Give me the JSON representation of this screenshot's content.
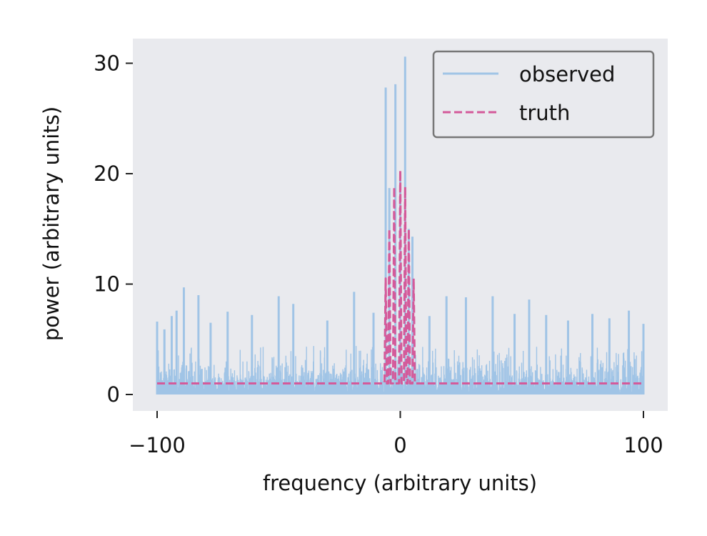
{
  "chart_data": {
    "type": "line",
    "title": "",
    "xlabel": "frequency (arbitrary units)",
    "ylabel": "power (arbitrary units)",
    "xlim": [
      -105,
      110
    ],
    "ylim": [
      -1.5,
      32
    ],
    "xticks": [
      -100,
      0,
      100
    ],
    "xtick_labels": [
      "−100",
      "0",
      "100"
    ],
    "yticks": [
      0,
      10,
      20,
      30
    ],
    "ytick_labels": [
      "0",
      "10",
      "20",
      "30"
    ],
    "grid": false,
    "background": "#e9eaee",
    "legend": {
      "placement": "top-right"
    },
    "series": [
      {
        "name": "observed",
        "color": "#a0c4e6",
        "style": "solid",
        "noise_floor": {
          "x_range": [
            -100,
            100
          ],
          "typical_max": 5.5
        },
        "peaks": [
          {
            "x": -100,
            "y": 6.6
          },
          {
            "x": -97,
            "y": 5.9
          },
          {
            "x": -94,
            "y": 7.1
          },
          {
            "x": -92,
            "y": 7.6
          },
          {
            "x": -89,
            "y": 9.7
          },
          {
            "x": -83,
            "y": 9.0
          },
          {
            "x": -78,
            "y": 6.5
          },
          {
            "x": -71,
            "y": 7.5
          },
          {
            "x": -61,
            "y": 7.2
          },
          {
            "x": -50,
            "y": 8.9
          },
          {
            "x": -44,
            "y": 8.2
          },
          {
            "x": -30,
            "y": 6.7
          },
          {
            "x": -19,
            "y": 9.3
          },
          {
            "x": -11,
            "y": 7.4
          },
          {
            "x": -6,
            "y": 27.8
          },
          {
            "x": -4.5,
            "y": 18.7
          },
          {
            "x": -2,
            "y": 28.1
          },
          {
            "x": 0,
            "y": 20.0
          },
          {
            "x": 2,
            "y": 30.6
          },
          {
            "x": 3.5,
            "y": 15.0
          },
          {
            "x": 5,
            "y": 14.3
          },
          {
            "x": 12,
            "y": 7.1
          },
          {
            "x": 19,
            "y": 8.9
          },
          {
            "x": 27,
            "y": 8.8
          },
          {
            "x": 38,
            "y": 8.9
          },
          {
            "x": 47,
            "y": 7.3
          },
          {
            "x": 53,
            "y": 8.6
          },
          {
            "x": 60,
            "y": 7.2
          },
          {
            "x": 69,
            "y": 6.7
          },
          {
            "x": 79,
            "y": 7.3
          },
          {
            "x": 86,
            "y": 6.9
          },
          {
            "x": 94,
            "y": 7.6
          },
          {
            "x": 100,
            "y": 6.4
          }
        ]
      },
      {
        "name": "truth",
        "color": "#d45a9a",
        "style": "dashed",
        "points": [
          {
            "x": -100,
            "y": 1
          },
          {
            "x": -6.5,
            "y": 1
          },
          {
            "x": -6,
            "y": 10.5
          },
          {
            "x": -5.5,
            "y": 1
          },
          {
            "x": -5,
            "y": 1
          },
          {
            "x": -4.5,
            "y": 15
          },
          {
            "x": -4,
            "y": 1
          },
          {
            "x": -3,
            "y": 1
          },
          {
            "x": -2.5,
            "y": 18.8
          },
          {
            "x": -2,
            "y": 1
          },
          {
            "x": -0.5,
            "y": 1
          },
          {
            "x": 0,
            "y": 20.3
          },
          {
            "x": 0.5,
            "y": 1
          },
          {
            "x": 1.5,
            "y": 1
          },
          {
            "x": 2,
            "y": 18.8
          },
          {
            "x": 2.5,
            "y": 1
          },
          {
            "x": 3,
            "y": 1
          },
          {
            "x": 3.5,
            "y": 15
          },
          {
            "x": 4,
            "y": 1
          },
          {
            "x": 5,
            "y": 1
          },
          {
            "x": 5.5,
            "y": 10.5
          },
          {
            "x": 6,
            "y": 1
          },
          {
            "x": 100,
            "y": 1
          }
        ]
      }
    ]
  }
}
